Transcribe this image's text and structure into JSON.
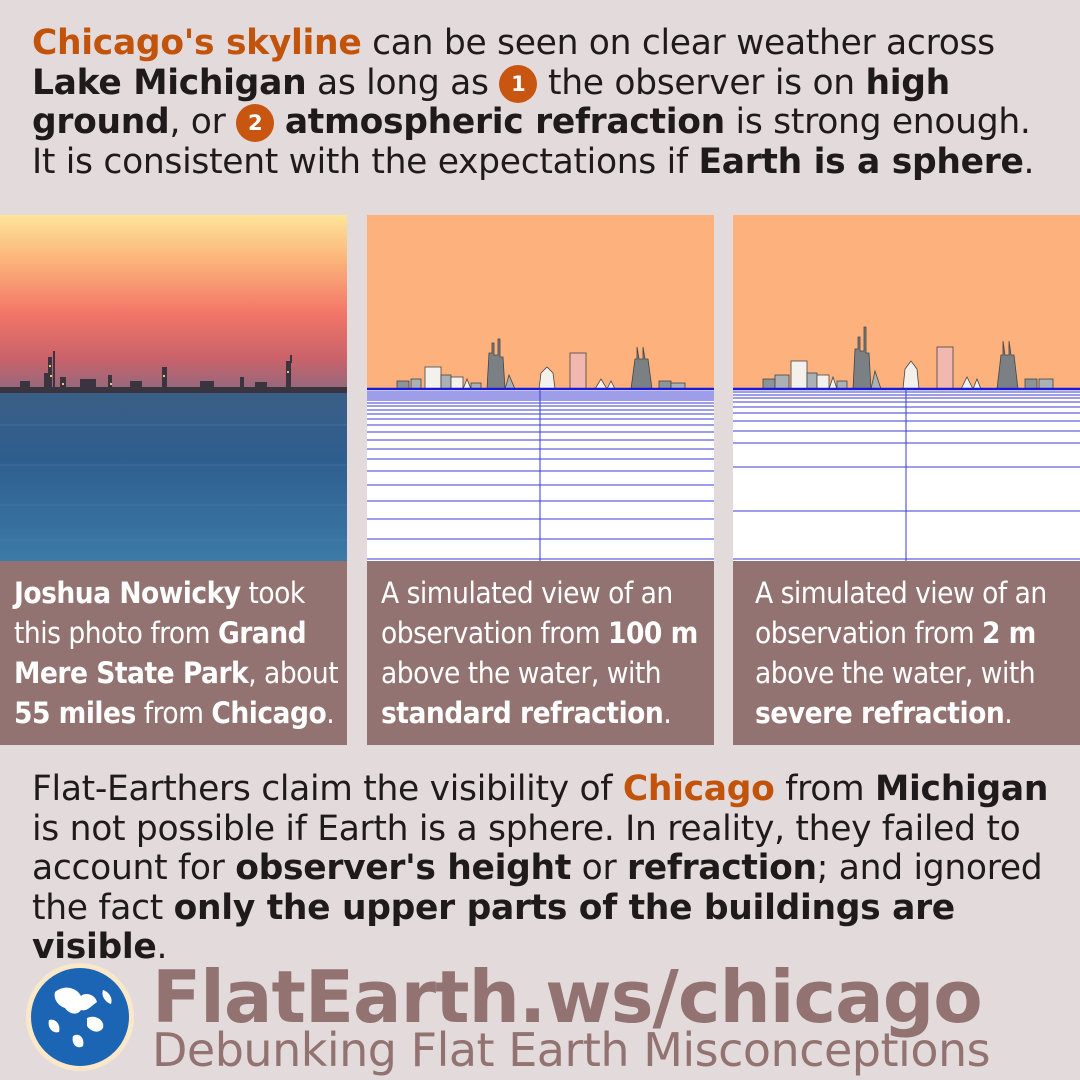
{
  "intro": {
    "subject": "Chicago's skyline",
    "t1": " can be seen on clear weather across ",
    "lake": "Lake Michigan",
    "t2": " as long as ",
    "n1": "1",
    "t3": " the observer is on ",
    "high_ground": "high ground",
    "t4": ", or ",
    "n2": "2",
    "refraction": "atmospheric refraction",
    "t5": " is strong enough. It is consistent with the expectations if ",
    "sphere": "Earth is a sphere",
    "t6": "."
  },
  "panels": [
    {
      "c1": "Joshua Nowicky",
      "c2": " took this photo from ",
      "c3": "Grand Mere State Park",
      "c4": ", about ",
      "c5": "55 miles",
      "c6": " from ",
      "c7": "Chicago",
      "c8": "."
    },
    {
      "c1": "A simulated view of an observation from ",
      "c2": "100 m",
      "c3": " above the water, with ",
      "c4": "standard refraction",
      "c5": "."
    },
    {
      "c1": "A simulated view of an observation from ",
      "c2": "2 m",
      "c3": " above the water, with ",
      "c4": "severe refraction",
      "c5": "."
    }
  ],
  "claim": {
    "t1": "Flat-Earthers claim the visibility of ",
    "chicago": "Chicago",
    "t2": " from ",
    "michigan": "Michigan",
    "t3": " is not possible if Earth is a sphere. In reality, they failed to account for ",
    "height": "observer's height",
    "t4": " or ",
    "refraction": "refraction",
    "t5": "; and ignored the fact ",
    "upper": "only the upper parts of the buildings are visible",
    "t6": "."
  },
  "footer": {
    "url": "FlatEarth.ws/chicago",
    "tagline": "Debunking Flat Earth Misconceptions"
  },
  "icons": {
    "logo": "globe-logo-icon"
  },
  "colors": {
    "accent": "#c2530a",
    "caption_bg": "#937371",
    "background": "#e3dadb",
    "sim_sky": "#fdb27e"
  }
}
